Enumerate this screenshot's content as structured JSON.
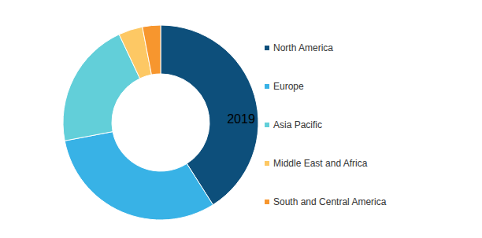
{
  "chart_data": {
    "type": "pie",
    "title": "2019",
    "categories": [
      "North America",
      "Europe",
      "Asia Pacific",
      "Middle East and Africa",
      "South and Central America"
    ],
    "values": [
      41,
      31,
      21,
      4,
      3
    ],
    "colors": [
      "#0d4f7b",
      "#38b2e6",
      "#62cfd9",
      "#fdc864",
      "#f7962e"
    ],
    "legend": "right",
    "donut": true
  }
}
